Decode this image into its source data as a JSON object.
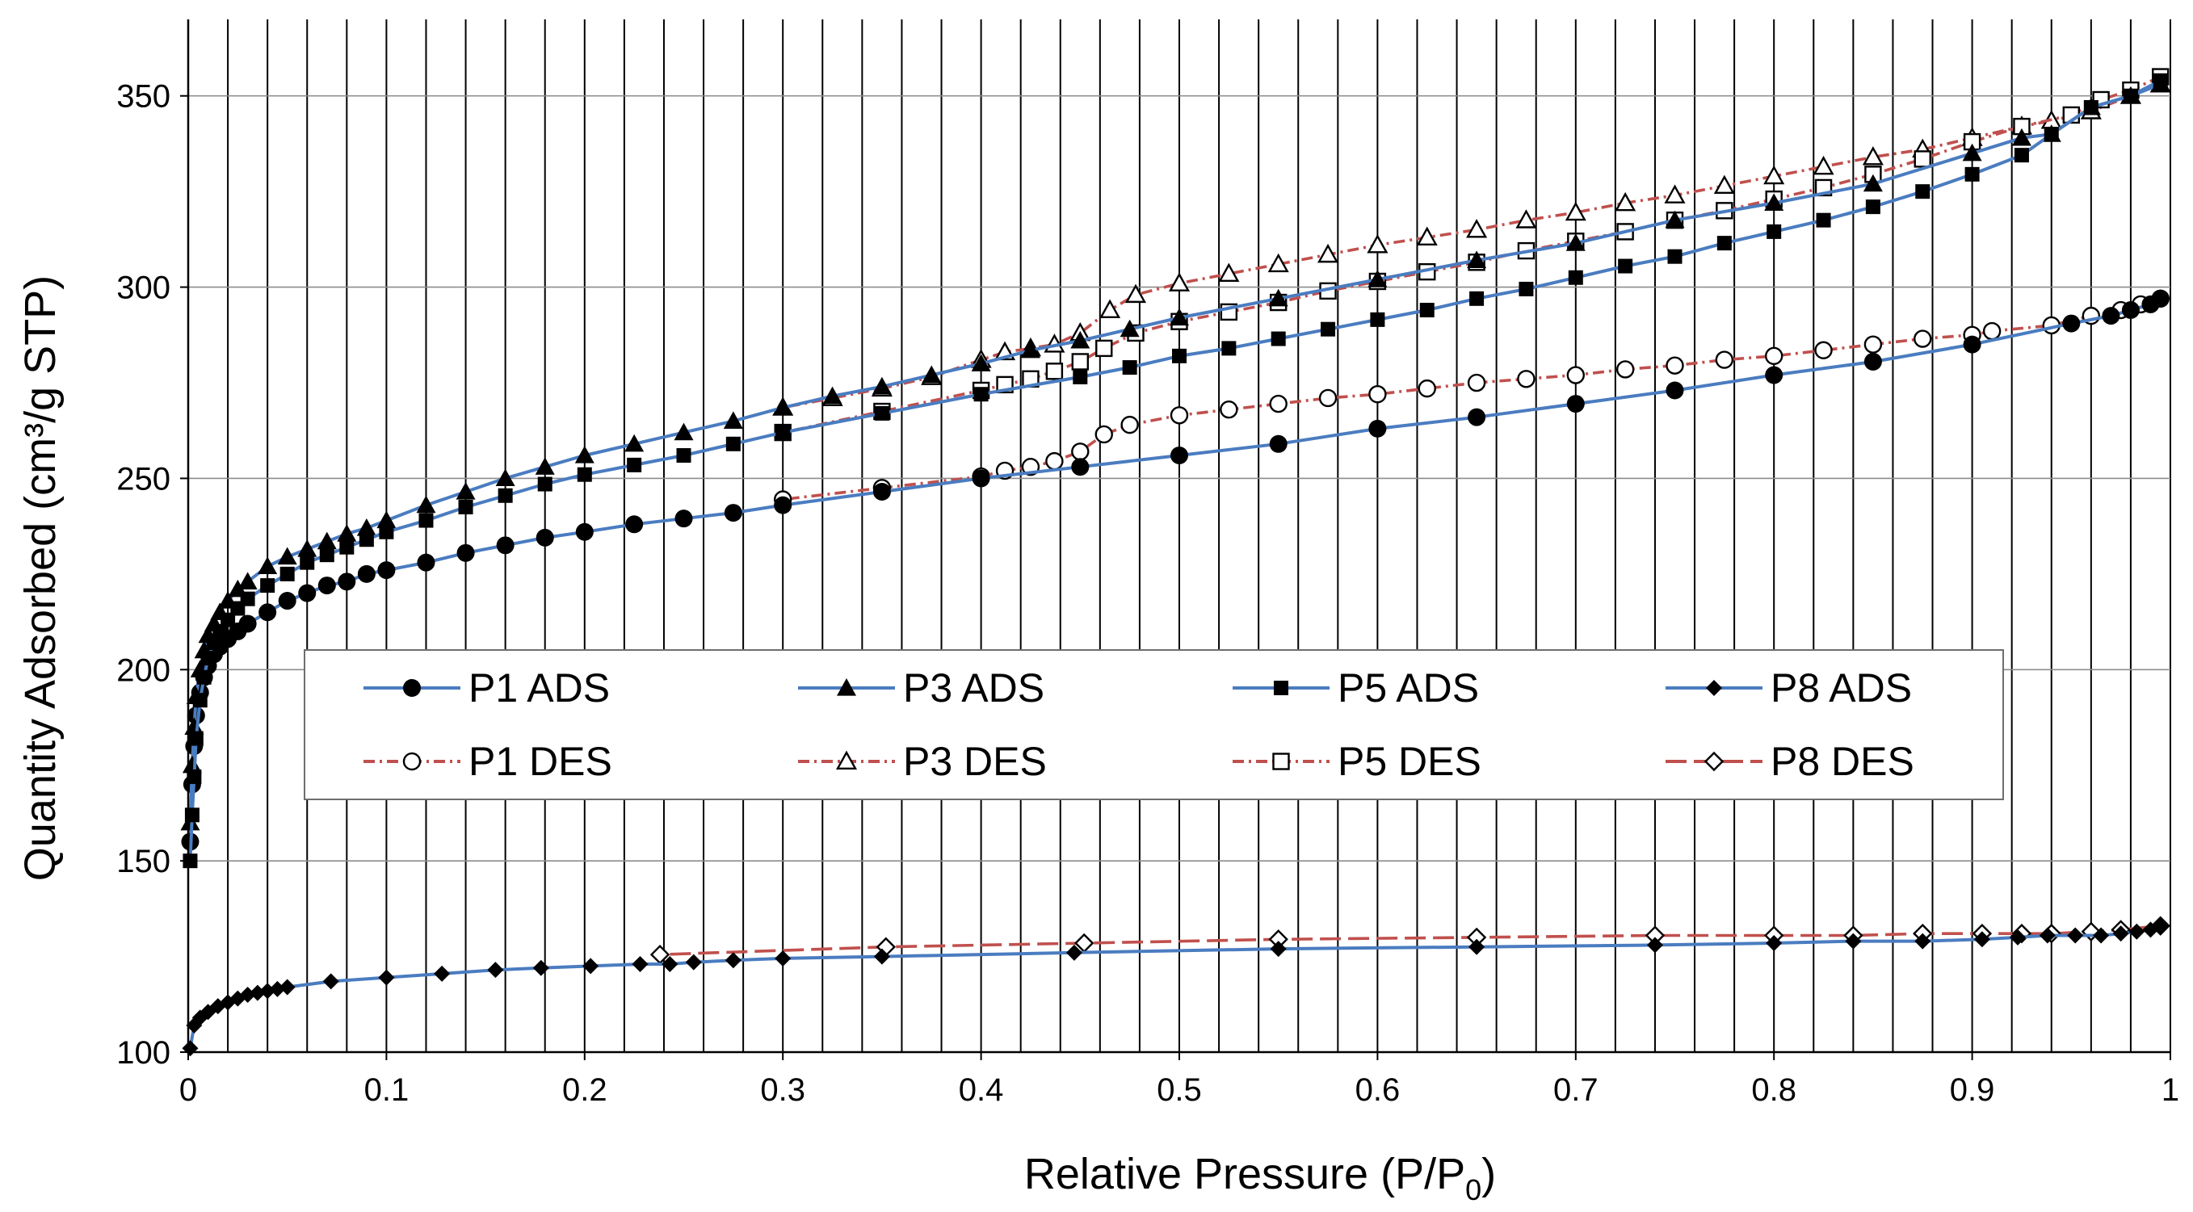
{
  "chart_data": {
    "type": "line",
    "title": "",
    "xlabel": "Relative Pressure (P/P",
    "xlabel_subscript": "0",
    "xlabel_suffix": ")",
    "ylabel": "Quantity Adsorbed (cm³/g STP)",
    "xlim": [
      0,
      1
    ],
    "ylim": [
      100,
      370
    ],
    "xticks": [
      0,
      0.1,
      0.2,
      0.3,
      0.4,
      0.5,
      0.6,
      0.7,
      0.8,
      0.9,
      1
    ],
    "xtick_labels": [
      "0",
      "0.1",
      "0.2",
      "0.3",
      "0.4",
      "0.5",
      "0.6",
      "0.7",
      "0.8",
      "0.9",
      "1"
    ],
    "yticks": [
      100,
      150,
      200,
      250,
      300,
      350
    ],
    "ytick_labels": [
      "100",
      "150",
      "200",
      "250",
      "300",
      "350"
    ],
    "vertical_gridlines": true,
    "horizontal_gridlines": true,
    "colors": {
      "ads": "#4a7cc0",
      "des": "#c0504d"
    },
    "legend": {
      "placement": "center"
    },
    "series": [
      {
        "name": "P1 ADS",
        "kind": "ads",
        "marker": "circle-filled",
        "x": [
          0.001,
          0.002,
          0.003,
          0.004,
          0.006,
          0.008,
          0.01,
          0.013,
          0.016,
          0.02,
          0.025,
          0.03,
          0.04,
          0.05,
          0.06,
          0.07,
          0.08,
          0.09,
          0.1,
          0.12,
          0.14,
          0.16,
          0.18,
          0.2,
          0.225,
          0.25,
          0.275,
          0.3,
          0.35,
          0.4,
          0.45,
          0.5,
          0.55,
          0.6,
          0.65,
          0.7,
          0.75,
          0.8,
          0.85,
          0.9,
          0.95,
          0.97,
          0.98,
          0.99,
          0.995
        ],
        "y": [
          155,
          170,
          180,
          188,
          194,
          198,
          201,
          204,
          206,
          208,
          210,
          212,
          215,
          218,
          220,
          222,
          223,
          225,
          226,
          228,
          230.5,
          232.5,
          234.5,
          236,
          238,
          239.5,
          241,
          243,
          246.5,
          250,
          253,
          256,
          259,
          263,
          266,
          269.5,
          273,
          277,
          280.5,
          285,
          290.5,
          292.5,
          294,
          295.5,
          297
        ]
      },
      {
        "name": "P3 ADS",
        "kind": "ads",
        "marker": "triangle-filled",
        "x": [
          0.001,
          0.002,
          0.003,
          0.004,
          0.006,
          0.008,
          0.01,
          0.013,
          0.016,
          0.02,
          0.025,
          0.03,
          0.04,
          0.05,
          0.06,
          0.07,
          0.08,
          0.09,
          0.1,
          0.12,
          0.14,
          0.16,
          0.18,
          0.2,
          0.225,
          0.25,
          0.275,
          0.3,
          0.325,
          0.35,
          0.375,
          0.4,
          0.425,
          0.45,
          0.475,
          0.5,
          0.55,
          0.6,
          0.65,
          0.7,
          0.75,
          0.8,
          0.85,
          0.9,
          0.925,
          0.94,
          0.96,
          0.98,
          0.995
        ],
        "y": [
          160,
          175,
          185,
          193,
          200,
          205,
          209,
          212,
          215,
          218,
          221,
          223,
          227,
          229.5,
          231.5,
          233.5,
          235.5,
          237,
          239,
          243,
          246.5,
          250,
          253,
          256,
          259,
          262,
          265,
          268.5,
          271.5,
          274,
          277,
          280,
          283.5,
          286,
          289,
          292,
          297,
          302,
          307,
          311.5,
          317.5,
          322,
          327,
          335,
          339,
          340,
          347,
          350,
          353
        ]
      },
      {
        "name": "P5 ADS",
        "kind": "ads",
        "marker": "square-filled",
        "x": [
          0.001,
          0.002,
          0.003,
          0.004,
          0.006,
          0.008,
          0.01,
          0.013,
          0.016,
          0.02,
          0.025,
          0.03,
          0.04,
          0.05,
          0.06,
          0.07,
          0.08,
          0.09,
          0.1,
          0.12,
          0.14,
          0.16,
          0.18,
          0.2,
          0.225,
          0.25,
          0.275,
          0.3,
          0.35,
          0.4,
          0.45,
          0.475,
          0.5,
          0.525,
          0.55,
          0.575,
          0.6,
          0.625,
          0.65,
          0.675,
          0.7,
          0.725,
          0.75,
          0.775,
          0.8,
          0.825,
          0.85,
          0.875,
          0.9,
          0.925,
          0.94,
          0.96,
          0.98,
          0.995
        ],
        "y": [
          150,
          162,
          172,
          182,
          192,
          198,
          203,
          207,
          210,
          213,
          216,
          218.5,
          222,
          225,
          228,
          230,
          232,
          234,
          236,
          239,
          242.5,
          245.5,
          248.5,
          251,
          253.5,
          256,
          259,
          262,
          267,
          272,
          276.5,
          279,
          282,
          284,
          286.5,
          289,
          291.5,
          294,
          297,
          299.5,
          302.5,
          305.5,
          308,
          311.5,
          314.5,
          317.5,
          321,
          325,
          329.5,
          334.5,
          340,
          347,
          350,
          354
        ]
      },
      {
        "name": "P8 ADS",
        "kind": "ads",
        "marker": "diamond-filled",
        "x": [
          0.001,
          0.003,
          0.006,
          0.01,
          0.015,
          0.02,
          0.025,
          0.03,
          0.035,
          0.04,
          0.045,
          0.05,
          0.072,
          0.1,
          0.128,
          0.155,
          0.178,
          0.203,
          0.228,
          0.243,
          0.255,
          0.275,
          0.3,
          0.35,
          0.447,
          0.55,
          0.65,
          0.74,
          0.8,
          0.84,
          0.875,
          0.905,
          0.923,
          0.938,
          0.952,
          0.965,
          0.975,
          0.983,
          0.99,
          0.995
        ],
        "y": [
          101,
          107,
          109,
          110.5,
          112,
          113,
          114,
          115,
          115.5,
          116,
          116.5,
          117,
          118.5,
          119.5,
          120.5,
          121.5,
          122,
          122.5,
          123,
          123,
          123.5,
          124,
          124.5,
          125,
          126,
          127,
          127.5,
          128,
          128.5,
          129,
          129,
          129.5,
          130,
          130.5,
          130.5,
          130.5,
          131,
          131.5,
          132,
          133
        ]
      },
      {
        "name": "P1 DES",
        "kind": "des",
        "marker": "circle-open",
        "x": [
          0.995,
          0.985,
          0.975,
          0.96,
          0.94,
          0.91,
          0.9,
          0.875,
          0.85,
          0.825,
          0.8,
          0.775,
          0.75,
          0.725,
          0.7,
          0.675,
          0.65,
          0.625,
          0.6,
          0.575,
          0.55,
          0.525,
          0.5,
          0.475,
          0.462,
          0.45,
          0.437,
          0.425,
          0.412,
          0.4,
          0.35,
          0.3
        ],
        "y": [
          297,
          295.5,
          294,
          292.5,
          290,
          288.5,
          287.5,
          286.5,
          285,
          283.5,
          282,
          281,
          279.5,
          278.5,
          277,
          276,
          275,
          273.5,
          272,
          271,
          269.5,
          268,
          266.5,
          264,
          261.5,
          257,
          254.5,
          253,
          252,
          250.5,
          247.5,
          244.5
        ]
      },
      {
        "name": "P3 DES",
        "kind": "des",
        "marker": "triangle-open",
        "x": [
          0.995,
          0.98,
          0.96,
          0.94,
          0.925,
          0.9,
          0.875,
          0.85,
          0.825,
          0.8,
          0.775,
          0.75,
          0.725,
          0.7,
          0.675,
          0.65,
          0.625,
          0.6,
          0.575,
          0.55,
          0.525,
          0.5,
          0.478,
          0.465,
          0.45,
          0.437,
          0.425,
          0.412,
          0.4,
          0.375,
          0.35,
          0.325,
          0.3
        ],
        "y": [
          353,
          350,
          346,
          343.5,
          342,
          339,
          336,
          334,
          331.5,
          329,
          326.5,
          324,
          322,
          319.5,
          317.5,
          315,
          313,
          311,
          308.5,
          306,
          303.5,
          301,
          298,
          294,
          288,
          285,
          284,
          283,
          281,
          276.5,
          273.5,
          271,
          268.5
        ]
      },
      {
        "name": "P5 DES",
        "kind": "des",
        "marker": "square-open",
        "x": [
          0.995,
          0.98,
          0.965,
          0.95,
          0.925,
          0.9,
          0.875,
          0.85,
          0.825,
          0.8,
          0.775,
          0.75,
          0.725,
          0.7,
          0.675,
          0.65,
          0.625,
          0.6,
          0.575,
          0.55,
          0.525,
          0.5,
          0.478,
          0.462,
          0.45,
          0.437,
          0.425,
          0.412,
          0.4,
          0.35,
          0.3
        ],
        "y": [
          355,
          351.5,
          349,
          345,
          342,
          338,
          333.5,
          329.5,
          326,
          323,
          320,
          317.5,
          314.5,
          312,
          309.5,
          306.5,
          304,
          301.5,
          299,
          296,
          293.5,
          291,
          288,
          284,
          280.5,
          278,
          276,
          274.5,
          273,
          267.5,
          262
        ]
      },
      {
        "name": "P8 DES",
        "kind": "des",
        "marker": "diamond-open",
        "x": [
          0.995,
          0.975,
          0.96,
          0.94,
          0.925,
          0.905,
          0.875,
          0.84,
          0.8,
          0.74,
          0.65,
          0.55,
          0.452,
          0.352,
          0.238
        ],
        "y": [
          133,
          132,
          131.5,
          131,
          131,
          131,
          131,
          130.5,
          130.5,
          130.5,
          130,
          129.5,
          128.5,
          127.5,
          125.5
        ]
      }
    ]
  }
}
